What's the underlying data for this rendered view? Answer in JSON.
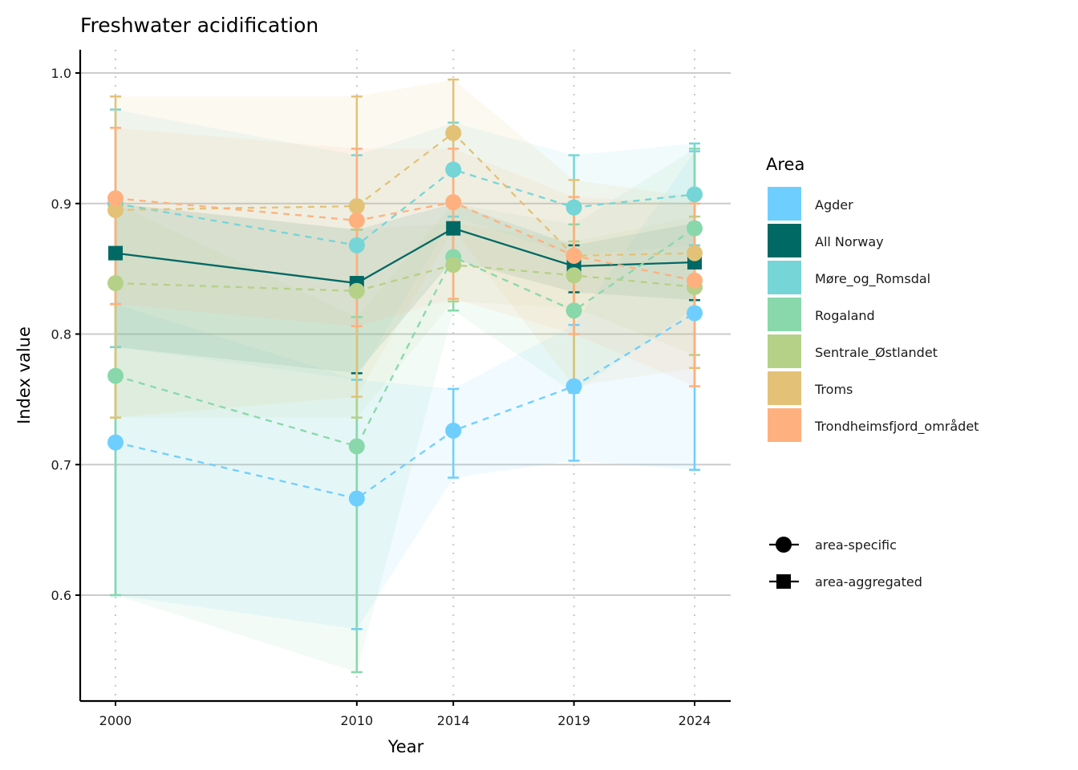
{
  "chart_data": {
    "type": "line",
    "title": "Freshwater acidification",
    "xlabel": "Year",
    "ylabel": "Index value",
    "x": [
      2000,
      2010,
      2014,
      2019,
      2024
    ],
    "x_tick_labels": [
      "2000",
      "2010",
      "2014",
      "2019",
      "2024"
    ],
    "y_ticks": [
      0.6,
      0.7,
      0.8,
      0.9,
      1.0
    ],
    "y_tick_labels": [
      "0.6",
      "0.7",
      "0.8",
      "0.9",
      "1.0"
    ],
    "xlim": [
      1999,
      2025.5
    ],
    "ylim": [
      0.52,
      1.018
    ],
    "grid": "horizontal major lines; dotted vertical lines at data years",
    "legend": {
      "title": "Area",
      "placement": "right",
      "shape_entries": [
        {
          "label": "area-specific",
          "shape": "circle"
        },
        {
          "label": "area-aggregated",
          "shape": "square"
        }
      ]
    },
    "series": [
      {
        "name": "Agder",
        "color": "#6ECFFF",
        "type": "area-specific",
        "values": [
          0.717,
          0.674,
          0.726,
          0.76,
          0.816
        ],
        "lower": [
          0.6,
          0.574,
          0.69,
          0.703,
          0.696
        ],
        "upper": [
          0.823,
          0.765,
          0.758,
          0.807,
          0.94
        ]
      },
      {
        "name": "All Norway",
        "color": "#006964",
        "type": "area-aggregated",
        "values": [
          0.862,
          0.839,
          0.881,
          0.852,
          0.855
        ],
        "lower": [
          0.79,
          0.77,
          0.857,
          0.832,
          0.826
        ],
        "upper": [
          0.9,
          0.88,
          0.9,
          0.868,
          0.885
        ]
      },
      {
        "name": "Møre_og_Romsdal",
        "color": "#76D5D7",
        "type": "area-specific",
        "values": [
          0.9,
          0.868,
          0.926,
          0.897,
          0.907
        ],
        "lower": [
          0.79,
          0.765,
          0.89,
          0.86,
          0.868
        ],
        "upper": [
          0.972,
          0.937,
          0.962,
          0.937,
          0.946
        ]
      },
      {
        "name": "Rogaland",
        "color": "#88D8AB",
        "type": "area-specific",
        "values": [
          0.768,
          0.714,
          0.859,
          0.818,
          0.881
        ],
        "lower": [
          0.6,
          0.541,
          0.818,
          0.755,
          0.82
        ],
        "upper": [
          0.9,
          0.813,
          0.9,
          0.884,
          0.942
        ]
      },
      {
        "name": "Sentrale_Østlandet",
        "color": "#B5D188",
        "type": "area-specific",
        "values": [
          0.839,
          0.833,
          0.853,
          0.845,
          0.836
        ],
        "lower": [
          0.736,
          0.736,
          0.825,
          0.82,
          0.784
        ],
        "upper": [
          0.9,
          0.88,
          0.885,
          0.871,
          0.89
        ]
      },
      {
        "name": "Troms",
        "color": "#E3C277",
        "type": "area-specific",
        "values": [
          0.895,
          0.898,
          0.954,
          0.86,
          0.862
        ],
        "lower": [
          0.736,
          0.752,
          0.88,
          0.76,
          0.774
        ],
        "upper": [
          0.982,
          0.982,
          0.995,
          0.918,
          0.905
        ]
      },
      {
        "name": "Trondheimsfjord_området",
        "color": "#FFB07E",
        "type": "area-specific",
        "values": [
          0.904,
          0.887,
          0.901,
          0.86,
          0.841
        ],
        "lower": [
          0.823,
          0.806,
          0.827,
          0.8,
          0.76
        ],
        "upper": [
          0.958,
          0.942,
          0.942,
          0.905,
          0.9
        ]
      }
    ]
  }
}
